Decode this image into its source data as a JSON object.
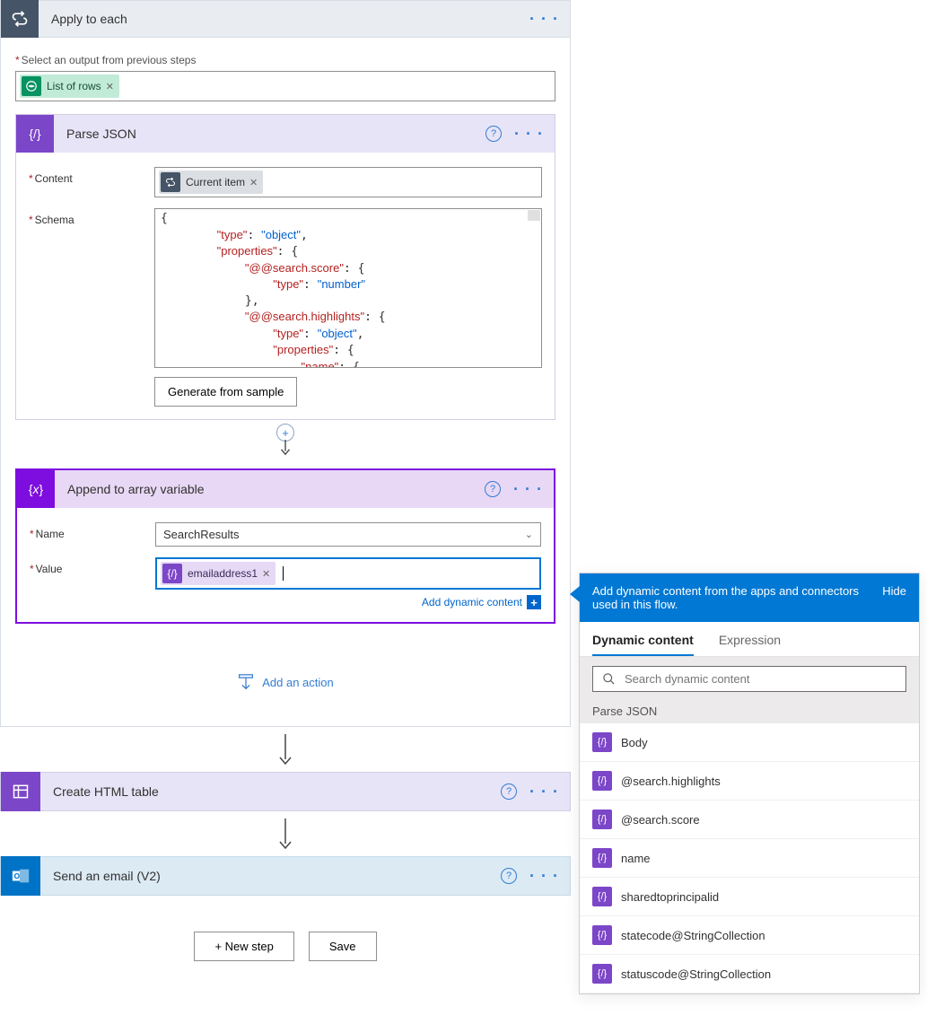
{
  "applyEach": {
    "title": "Apply to each",
    "outputLabel": "Select an output from previous steps",
    "outputToken": "List of rows"
  },
  "parseJson": {
    "title": "Parse JSON",
    "contentLabel": "Content",
    "contentToken": "Current item",
    "schemaLabel": "Schema",
    "schemaLines": [
      {
        "indent": 0,
        "k": null,
        "v": null,
        "raw": "{"
      },
      {
        "indent": 1,
        "k": "\"type\"",
        "v": "\"object\"",
        "comma": true
      },
      {
        "indent": 1,
        "k": "\"properties\"",
        "v": null,
        "raw": "{"
      },
      {
        "indent": 2,
        "k": "\"@@search.score\"",
        "v": null,
        "raw": "{"
      },
      {
        "indent": 3,
        "k": "\"type\"",
        "v": "\"number\""
      },
      {
        "indent": 2,
        "k": null,
        "v": null,
        "raw": "},"
      },
      {
        "indent": 2,
        "k": "\"@@search.highlights\"",
        "v": null,
        "raw": "{"
      },
      {
        "indent": 3,
        "k": "\"type\"",
        "v": "\"object\"",
        "comma": true
      },
      {
        "indent": 3,
        "k": "\"properties\"",
        "v": null,
        "raw": "{"
      },
      {
        "indent": 4,
        "k": "\"name\"",
        "v": null,
        "raw": "{"
      }
    ],
    "generateBtn": "Generate from sample"
  },
  "appendVar": {
    "title": "Append to array variable",
    "nameLabel": "Name",
    "nameValue": "SearchResults",
    "valueLabel": "Value",
    "valueToken": "emailaddress1",
    "addDynLink": "Add dynamic content"
  },
  "addAction": "Add an action",
  "createHtml": {
    "title": "Create HTML table"
  },
  "sendEmail": {
    "title": "Send an email (V2)"
  },
  "footer": {
    "newStep": "+ New step",
    "save": "Save"
  },
  "dynPanel": {
    "headText": "Add dynamic content from the apps and connectors used in this flow.",
    "hide": "Hide",
    "tabs": [
      "Dynamic content",
      "Expression"
    ],
    "activeTab": 0,
    "searchPlaceholder": "Search dynamic content",
    "groupTitle": "Parse JSON",
    "items": [
      "Body",
      "@search.highlights",
      "@search.score",
      "name",
      "sharedtoprincipalid",
      "statecode@StringCollection",
      "statuscode@StringCollection"
    ]
  },
  "colors": {
    "primaryBlue": "#0078d4",
    "purpleAccent": "#7c46c8",
    "darkPurple": "#7d0edf",
    "greenAccent": "#079261",
    "slateIcon": "#455467",
    "linkBlue": "#327cd3"
  }
}
